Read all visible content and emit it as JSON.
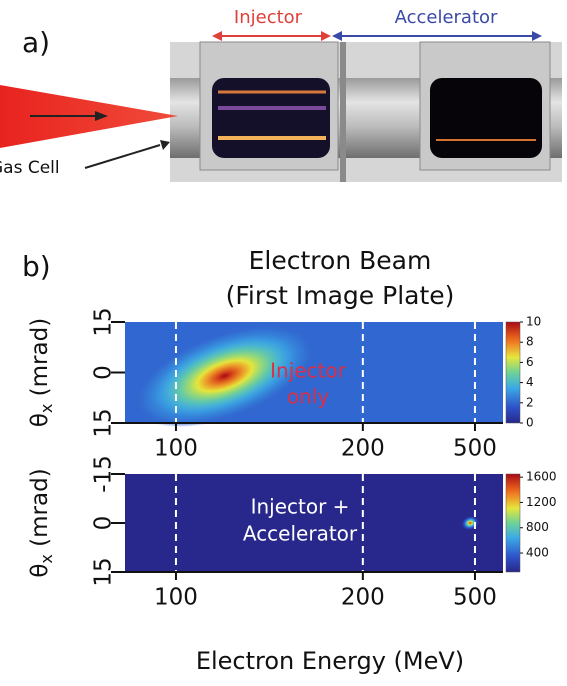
{
  "panel_a": {
    "label": "a)",
    "injector": "Injector",
    "accelerator": "Accelerator",
    "gas_cell": "Gas Cell"
  },
  "panel_b_label": "b)",
  "title": [
    "Electron Beam",
    "(First Image Plate)"
  ],
  "xlabel": "Electron Energy (MeV)",
  "chart_data": [
    {
      "type": "heatmap",
      "xscale": "reciprocal",
      "xlim": [
        88,
        800
      ],
      "xticks": [
        100,
        200,
        500
      ],
      "ylim": [
        -15,
        15
      ],
      "y_inverted": false,
      "yticks": [
        15,
        0,
        {
          "value": -15,
          "label": "15"
        }
      ],
      "ylabel": {
        "symbol": "θ",
        "subscript": "x",
        "unit": " (mrad)"
      },
      "grid": true,
      "clim": [
        0,
        10
      ],
      "colorbar_ticks": [
        0,
        2,
        4,
        6,
        8,
        10
      ],
      "background": 2,
      "peaks": [
        {
          "x": 115,
          "y": -1,
          "value": 10
        }
      ],
      "annotation": {
        "text": [
          "Injector",
          "only"
        ],
        "color": "#d9304a"
      }
    },
    {
      "type": "heatmap",
      "xscale": "reciprocal",
      "xlim": [
        88,
        800
      ],
      "xticks": [
        100,
        200,
        500
      ],
      "ylim": [
        -15,
        15
      ],
      "y_inverted": true,
      "yticks": [
        -15,
        0,
        15
      ],
      "ylabel": {
        "symbol": "θ",
        "subscript": "x",
        "unit": " (mrad)"
      },
      "grid": true,
      "clim": [
        100,
        1650
      ],
      "colorbar_ticks": [
        400,
        800,
        1200,
        1600
      ],
      "background": 100,
      "peaks": [
        {
          "x": 470,
          "y": 0,
          "value": 1600
        }
      ],
      "annotation": {
        "text": [
          "Injector +",
          "Accelerator"
        ],
        "color": "#ffffff"
      }
    }
  ]
}
